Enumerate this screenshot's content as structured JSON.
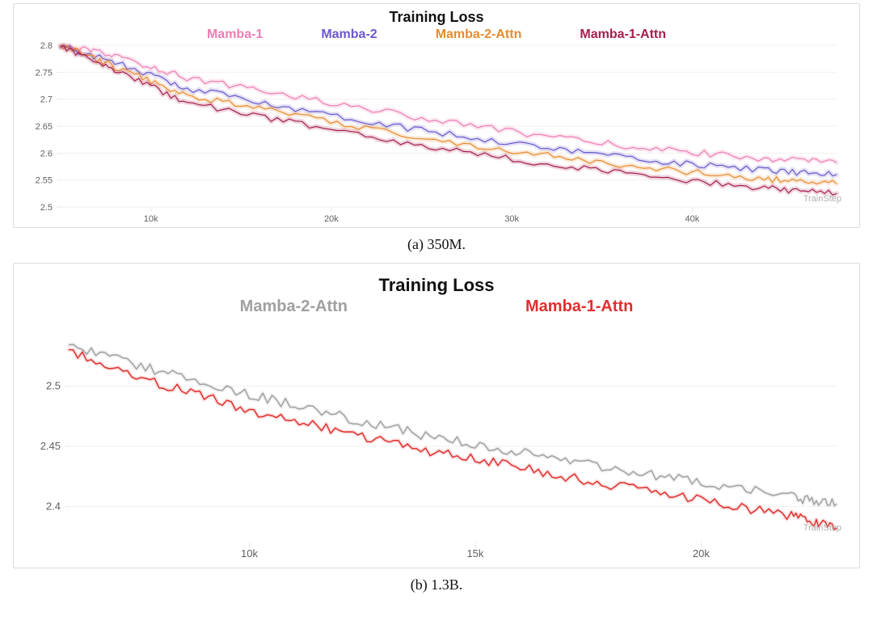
{
  "chart_a": {
    "type": "line",
    "title": "Training Loss",
    "caption": "(a) 350M.",
    "title_fontsize": 18,
    "title_fontweight": 700,
    "legend_fontsize": 16,
    "legend_fontweight": 600,
    "background_color": "#ffffff",
    "panel_border_color": "#dcdcdc",
    "grid_color": "#f0f0f0",
    "axis_tick_color": "#dcdcdc",
    "tick_label_color": "#606060",
    "x_axis_label": "TrainStep",
    "x_axis_label_color": "#b0b0b0",
    "xlim": [
      5000,
      48000
    ],
    "ylim": [
      2.5,
      2.8
    ],
    "xticks": [
      10000,
      20000,
      30000,
      40000
    ],
    "xtick_labels": [
      "10k",
      "20k",
      "30k",
      "40k"
    ],
    "yticks": [
      2.5,
      2.55,
      2.6,
      2.65,
      2.7,
      2.75,
      2.8
    ],
    "ytick_labels": [
      "2.5",
      "2.55",
      "2.6",
      "2.65",
      "2.7",
      "2.75",
      "2.8"
    ],
    "plot_inner_width": 960,
    "plot_inner_height": 200,
    "line_width": 1.2,
    "noise_amplitude": 0.006,
    "noise_points_per_segment": 18,
    "glow_opacity": 0.18,
    "glow_width": 6,
    "series": [
      {
        "name": "Mamba-1",
        "color": "#ec7eb4",
        "steps": [
          5000,
          8000,
          12000,
          18000,
          25000,
          32000,
          38000,
          44000,
          48000
        ],
        "values": [
          2.8,
          2.78,
          2.74,
          2.705,
          2.665,
          2.63,
          2.607,
          2.59,
          2.582
        ]
      },
      {
        "name": "Mamba-2",
        "color": "#6a5acd",
        "steps": [
          5000,
          8000,
          12000,
          18000,
          25000,
          32000,
          38000,
          44000,
          48000
        ],
        "values": [
          2.8,
          2.768,
          2.72,
          2.683,
          2.642,
          2.61,
          2.585,
          2.568,
          2.56
        ]
      },
      {
        "name": "Mamba-2-Attn",
        "color": "#e78b2e",
        "steps": [
          5000,
          8000,
          12000,
          18000,
          25000,
          32000,
          38000,
          44000,
          48000
        ],
        "values": [
          2.8,
          2.76,
          2.708,
          2.67,
          2.628,
          2.595,
          2.57,
          2.552,
          2.543
        ]
      },
      {
        "name": "Mamba-1-Attn",
        "color": "#a61e4d",
        "steps": [
          5000,
          8000,
          12000,
          18000,
          25000,
          32000,
          38000,
          44000,
          48000
        ],
        "values": [
          2.8,
          2.752,
          2.695,
          2.655,
          2.612,
          2.58,
          2.555,
          2.535,
          2.525
        ]
      }
    ]
  },
  "chart_b": {
    "type": "line",
    "title": "Training Loss",
    "caption": "(b) 1.3B.",
    "title_fontsize": 22,
    "title_fontweight": 700,
    "legend_fontsize": 20,
    "legend_fontweight": 700,
    "background_color": "#ffffff",
    "panel_border_color": "#dcdcdc",
    "grid_color": "#f0f0f0",
    "axis_tick_color": "#dcdcdc",
    "tick_label_color": "#606060",
    "x_axis_label": "TrainStep",
    "x_axis_label_color": "#b0b0b0",
    "xlim": [
      6000,
      23000
    ],
    "ylim": [
      2.37,
      2.55
    ],
    "xticks": [
      10000,
      15000,
      20000
    ],
    "xtick_labels": [
      "10k",
      "15k",
      "20k"
    ],
    "yticks": [
      2.4,
      2.45,
      2.5
    ],
    "ytick_labels": [
      "2.4",
      "2.45",
      "2.5"
    ],
    "plot_inner_width": 950,
    "plot_inner_height": 268,
    "line_width": 1.5,
    "noise_amplitude": 0.004,
    "noise_points_per_segment": 20,
    "glow_opacity": 0.15,
    "glow_width": 5,
    "series": [
      {
        "name": "Mamba-2-Attn",
        "color": "#a0a0a0",
        "steps": [
          6000,
          8000,
          10000,
          12000,
          14000,
          16000,
          18000,
          20000,
          22000,
          23000
        ],
        "values": [
          2.535,
          2.512,
          2.493,
          2.475,
          2.458,
          2.445,
          2.432,
          2.42,
          2.408,
          2.402
        ]
      },
      {
        "name": "Mamba-1-Attn",
        "color": "#e02f2f",
        "steps": [
          6000,
          8000,
          10000,
          12000,
          14000,
          16000,
          18000,
          20000,
          22000,
          23000
        ],
        "values": [
          2.53,
          2.502,
          2.48,
          2.462,
          2.446,
          2.432,
          2.418,
          2.405,
          2.392,
          2.382
        ]
      }
    ]
  }
}
